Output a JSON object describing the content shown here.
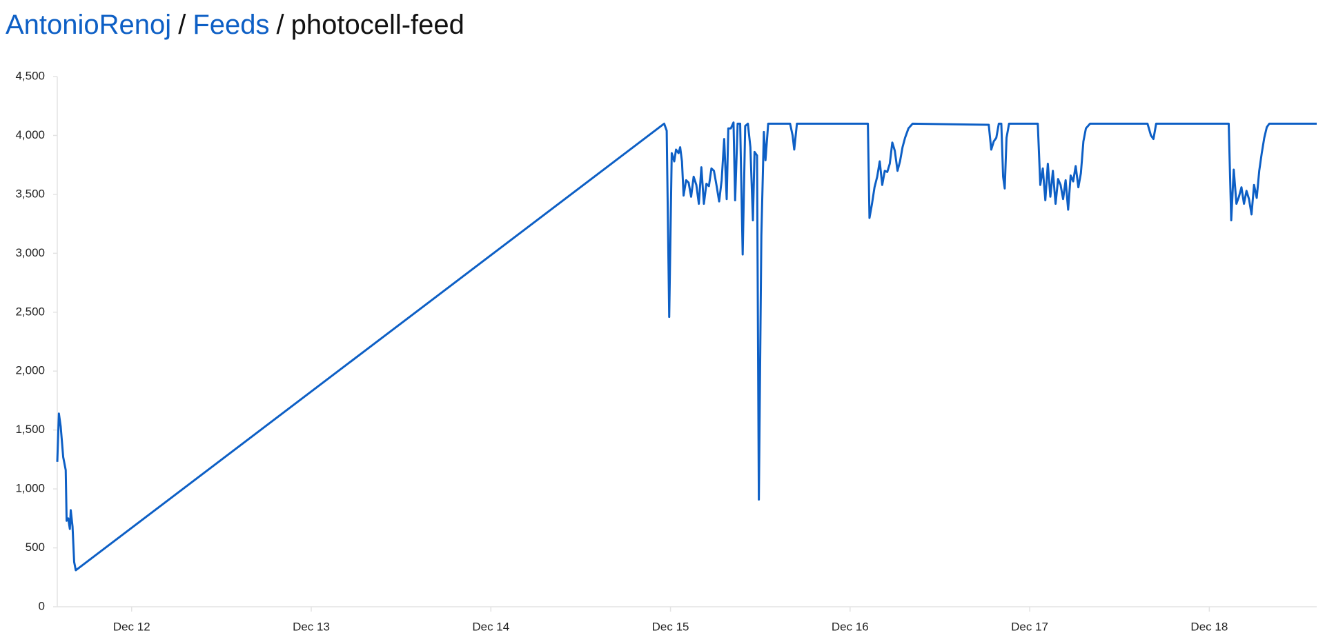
{
  "breadcrumb": {
    "items": [
      "AntonioRenoj",
      "Feeds",
      "photocell-feed"
    ],
    "separator": "/"
  },
  "chart_data": {
    "type": "line",
    "color": "#0d5fc5",
    "x": [
      11.586,
      11.595,
      11.605,
      11.619,
      11.633,
      11.638,
      11.647,
      11.656,
      11.661,
      11.671,
      11.68,
      11.689,
      14.965,
      14.979,
      14.993,
      15.007,
      15.021,
      15.031,
      15.045,
      15.054,
      15.064,
      15.073,
      15.087,
      15.101,
      15.115,
      15.129,
      15.144,
      15.158,
      15.172,
      15.186,
      15.2,
      15.214,
      15.228,
      15.242,
      15.256,
      15.271,
      15.285,
      15.299,
      15.313,
      15.322,
      15.336,
      15.351,
      15.36,
      15.374,
      15.388,
      15.402,
      15.416,
      15.431,
      15.445,
      15.459,
      15.468,
      15.482,
      15.492,
      15.506,
      15.52,
      15.529,
      15.544,
      15.666,
      15.68,
      15.689,
      15.704,
      16.099,
      16.108,
      16.122,
      16.136,
      16.151,
      16.165,
      16.179,
      16.193,
      16.207,
      16.221,
      16.235,
      16.249,
      16.264,
      16.278,
      16.292,
      16.306,
      16.325,
      16.348,
      16.772,
      16.786,
      16.8,
      16.814,
      16.828,
      16.842,
      16.852,
      16.861,
      16.871,
      16.885,
      17.045,
      17.059,
      17.073,
      17.087,
      17.101,
      17.115,
      17.129,
      17.144,
      17.158,
      17.172,
      17.186,
      17.2,
      17.214,
      17.228,
      17.242,
      17.256,
      17.271,
      17.285,
      17.299,
      17.313,
      17.336,
      17.656,
      17.675,
      17.689,
      17.704,
      18.108,
      18.122,
      18.136,
      18.151,
      18.165,
      18.179,
      18.193,
      18.207,
      18.221,
      18.235,
      18.249,
      18.264,
      18.278,
      18.292,
      18.306,
      18.32,
      18.334,
      18.598
    ],
    "values": [
      1230,
      1640,
      1530,
      1270,
      1160,
      730,
      750,
      660,
      820,
      680,
      380,
      310,
      4100,
      4040,
      2460,
      3850,
      3780,
      3880,
      3850,
      3900,
      3780,
      3490,
      3620,
      3600,
      3480,
      3650,
      3580,
      3420,
      3730,
      3420,
      3590,
      3570,
      3720,
      3700,
      3580,
      3440,
      3620,
      3970,
      3460,
      4060,
      4060,
      4110,
      3450,
      4100,
      4100,
      2990,
      4080,
      4100,
      3900,
      3280,
      3860,
      3830,
      910,
      3150,
      4030,
      3790,
      4100,
      4100,
      4000,
      3880,
      4100,
      4100,
      3300,
      3420,
      3560,
      3650,
      3780,
      3580,
      3700,
      3690,
      3760,
      3940,
      3870,
      3700,
      3780,
      3900,
      3980,
      4060,
      4100,
      4090,
      3880,
      3950,
      3980,
      4100,
      4100,
      3650,
      3550,
      3980,
      4100,
      4100,
      3580,
      3720,
      3450,
      3760,
      3480,
      3700,
      3420,
      3630,
      3580,
      3460,
      3620,
      3370,
      3660,
      3610,
      3740,
      3560,
      3680,
      3950,
      4060,
      4100,
      4100,
      4000,
      3970,
      4100,
      4100,
      3280,
      3710,
      3420,
      3480,
      3560,
      3420,
      3530,
      3460,
      3330,
      3580,
      3470,
      3700,
      3850,
      3980,
      4070,
      4100,
      4100
    ],
    "xlim": [
      11.586,
      18.598
    ],
    "xticks": [
      {
        "value": 12,
        "label": "Dec 12"
      },
      {
        "value": 13,
        "label": "Dec 13"
      },
      {
        "value": 14,
        "label": "Dec 14"
      },
      {
        "value": 15,
        "label": "Dec 15"
      },
      {
        "value": 16,
        "label": "Dec 16"
      },
      {
        "value": 17,
        "label": "Dec 17"
      },
      {
        "value": 18,
        "label": "Dec 18"
      }
    ],
    "ylim": [
      0,
      4500
    ],
    "yticks": [
      0,
      500,
      {
        "value": 1000,
        "label": "1,000"
      },
      {
        "value": 1500,
        "label": "1,500"
      },
      {
        "value": 2000,
        "label": "2,000"
      },
      {
        "value": 2500,
        "label": "2,500"
      },
      {
        "value": 3000,
        "label": "3,000"
      },
      {
        "value": 3500,
        "label": "3,500"
      },
      {
        "value": 4000,
        "label": "4,000"
      },
      {
        "value": 4500,
        "label": "4,500"
      }
    ],
    "grid": false
  }
}
